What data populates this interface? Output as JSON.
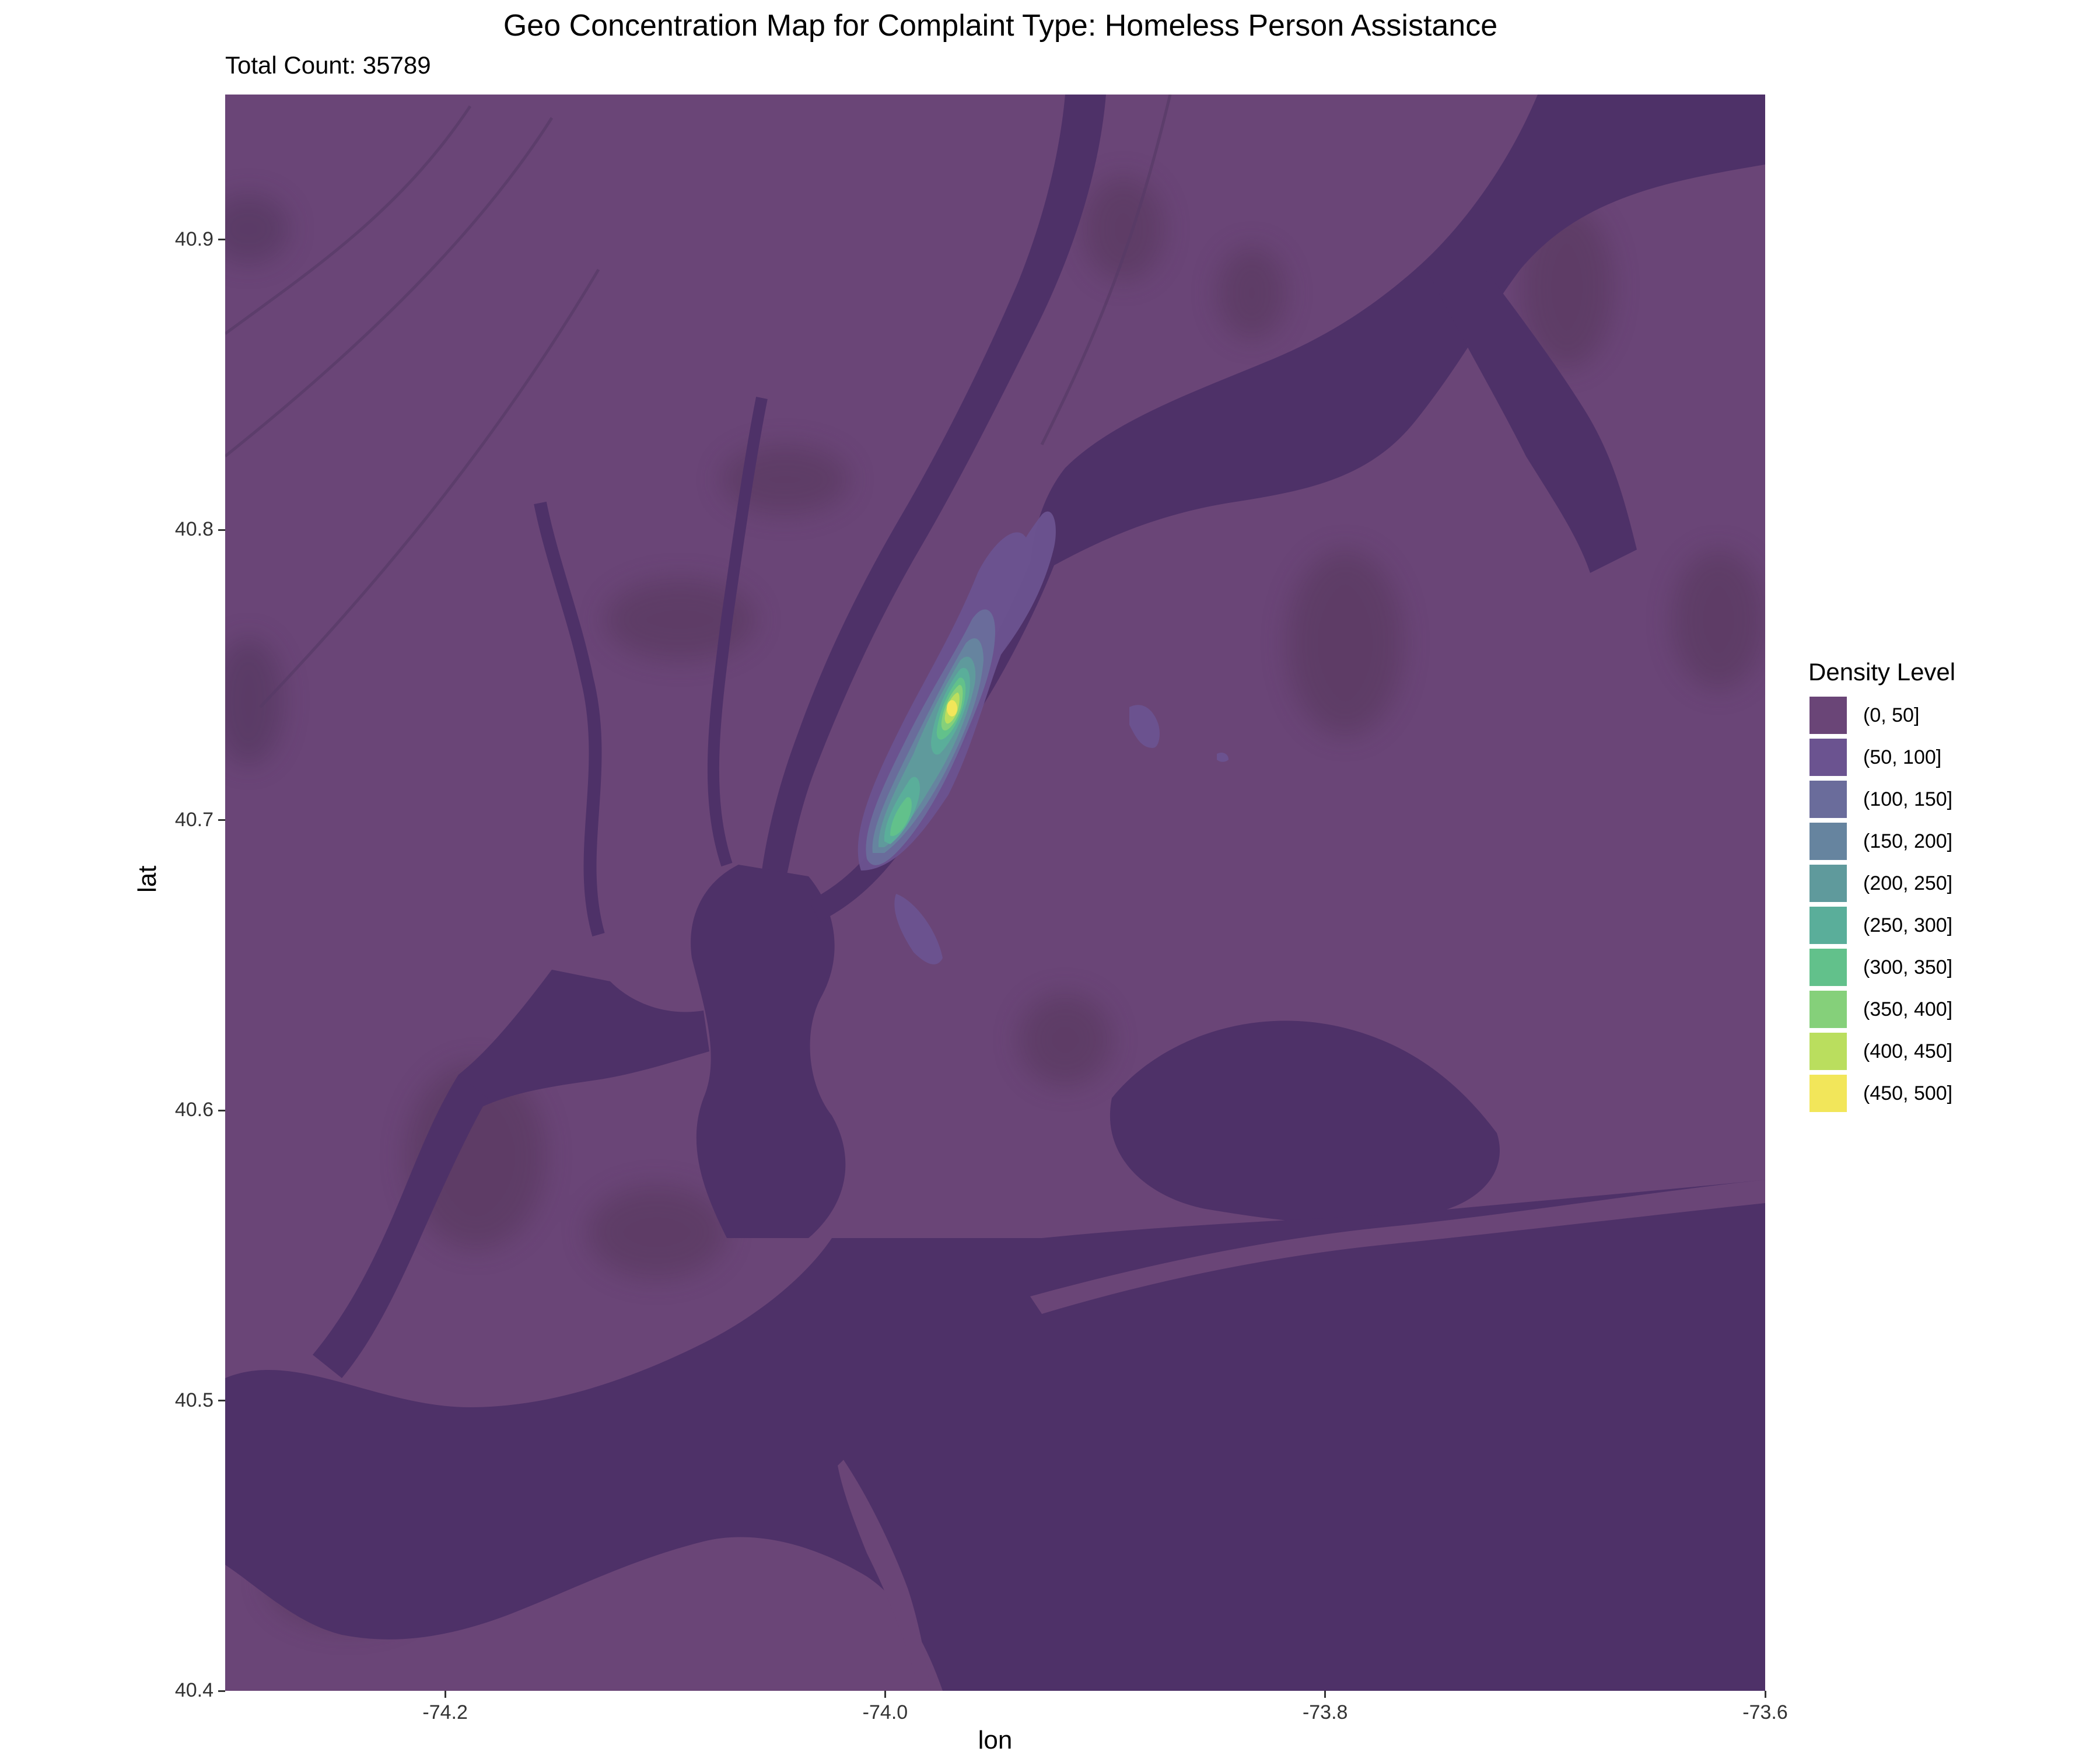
{
  "chart_data": {
    "type": "map",
    "title": "Geo Concentration Map for Complaint Type: Homeless Person Assistance",
    "subtitle": "Total Count: 35789",
    "xlabel": "lon",
    "ylabel": "lat",
    "xlim": [
      -74.3,
      -73.6
    ],
    "ylim": [
      40.4,
      40.95
    ],
    "x_ticks": [
      -74.2,
      -74.0,
      -73.8,
      -73.6
    ],
    "x_tick_labels": [
      "-74.2",
      "-74.0",
      "-73.8",
      "-73.6"
    ],
    "y_ticks": [
      40.4,
      40.5,
      40.6,
      40.7,
      40.8,
      40.9
    ],
    "y_tick_labels": [
      "40.4",
      "40.5",
      "40.6",
      "40.7",
      "40.8",
      "40.9"
    ],
    "grid": false,
    "legend": {
      "title": "Density Level",
      "placement": "right",
      "levels": [
        {
          "label": "(0, 50]",
          "color": "#6a4577"
        },
        {
          "label": "(50, 100]",
          "color": "#6b5390"
        },
        {
          "label": "(100, 150]",
          "color": "#6a6c9b"
        },
        {
          "label": "(150, 200]",
          "color": "#66849f"
        },
        {
          "label": "(200, 250]",
          "color": "#5f9a9c"
        },
        {
          "label": "(250, 300]",
          "color": "#5aae9a"
        },
        {
          "label": "(300, 350]",
          "color": "#62c18b"
        },
        {
          "label": "(350, 400]",
          "color": "#85d07a"
        },
        {
          "label": "(400, 450]",
          "color": "#bade5e"
        },
        {
          "label": "(450, 500]",
          "color": "#f2e65a"
        }
      ]
    },
    "density_hotspots": [
      {
        "lon": -73.984,
        "lat": 40.758,
        "level": "(450, 500]"
      },
      {
        "lon": -74.007,
        "lat": 40.711,
        "level": "(300, 350]"
      },
      {
        "lon": -73.96,
        "lat": 40.79,
        "level": "(50, 100]"
      },
      {
        "lon": -73.88,
        "lat": 40.74,
        "level": "(50, 100]"
      },
      {
        "lon": -73.985,
        "lat": 40.69,
        "level": "(50, 100]"
      }
    ],
    "colors": {
      "land": "#6a4577",
      "water": "#4e3168"
    }
  }
}
